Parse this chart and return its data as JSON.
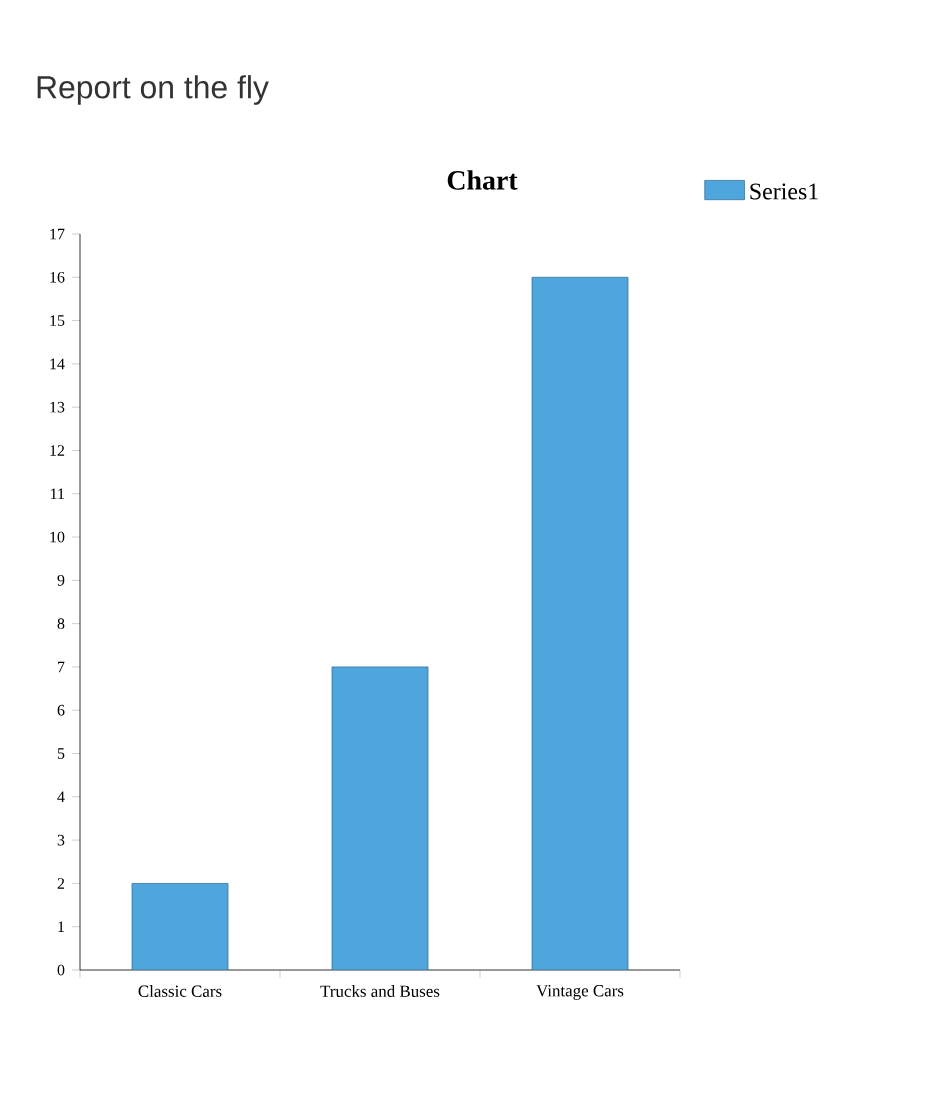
{
  "chart_data": {
    "type": "bar",
    "title": "Report on the fly",
    "subtitle": "Chart",
    "categories": [
      "Classic Cars",
      "Trucks and Buses",
      "Vintage Cars"
    ],
    "series": [
      {
        "name": "Series1",
        "color": "#4fa6dc",
        "values": [
          2,
          7,
          16
        ]
      }
    ],
    "ylim": [
      0,
      17
    ],
    "yticks": [
      0,
      1,
      2,
      3,
      4,
      5,
      6,
      7,
      8,
      9,
      10,
      11,
      12,
      13,
      14,
      15,
      16,
      17
    ],
    "grid": false,
    "legend": "top right"
  }
}
